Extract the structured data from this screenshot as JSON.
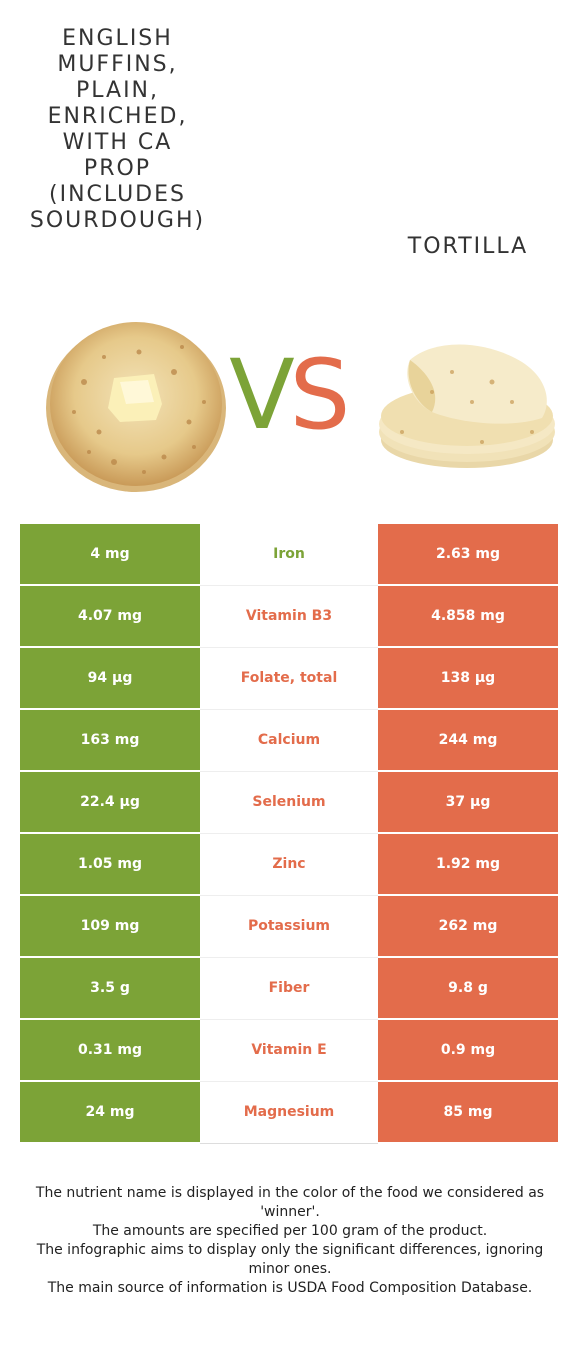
{
  "foods": {
    "left": {
      "name": "ENGLISH\nMUFFINS,\nPLAIN,\nENRICHED,\nWITH CA\nPROP\n(INCLUDES\nSOURDOUGH)",
      "color": "#7ca337",
      "image": "english-muffin"
    },
    "right": {
      "name": "TORTILLA",
      "color": "#e36c4b",
      "image": "tortilla-stack"
    }
  },
  "vs": {
    "v": "V",
    "s": "S"
  },
  "rows": [
    {
      "nutrient": "Iron",
      "left": "4 mg",
      "right": "2.63 mg",
      "winner": "left"
    },
    {
      "nutrient": "Vitamin B3",
      "left": "4.07 mg",
      "right": "4.858 mg",
      "winner": "right"
    },
    {
      "nutrient": "Folate, total",
      "left": "94 µg",
      "right": "138 µg",
      "winner": "right"
    },
    {
      "nutrient": "Calcium",
      "left": "163 mg",
      "right": "244 mg",
      "winner": "right"
    },
    {
      "nutrient": "Selenium",
      "left": "22.4 µg",
      "right": "37 µg",
      "winner": "right"
    },
    {
      "nutrient": "Zinc",
      "left": "1.05 mg",
      "right": "1.92 mg",
      "winner": "right"
    },
    {
      "nutrient": "Potassium",
      "left": "109 mg",
      "right": "262 mg",
      "winner": "right"
    },
    {
      "nutrient": "Fiber",
      "left": "3.5 g",
      "right": "9.8 g",
      "winner": "right"
    },
    {
      "nutrient": "Vitamin E",
      "left": "0.31 mg",
      "right": "0.9 mg",
      "winner": "right"
    },
    {
      "nutrient": "Magnesium",
      "left": "24 mg",
      "right": "85 mg",
      "winner": "right"
    }
  ],
  "footnote": [
    "The nutrient name is displayed in the color of the food we considered as 'winner'.",
    "The amounts are specified per 100 gram of the product.",
    "The infographic aims to display only the significant differences, ignoring minor ones.",
    "The main source of information is USDA Food Composition Database."
  ]
}
